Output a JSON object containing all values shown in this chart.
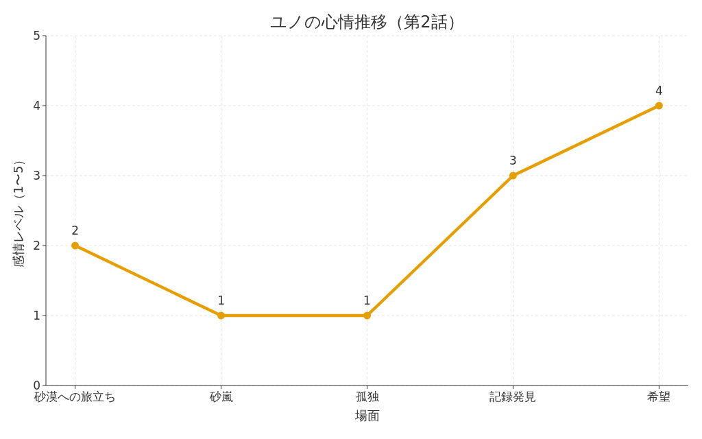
{
  "chart_data": {
    "type": "line",
    "title": "ユノの心情推移（第2話）",
    "xlabel": "場面",
    "ylabel": "感情レベル（1〜5）",
    "categories": [
      "砂漠への旅立ち",
      "砂嵐",
      "孤独",
      "記録発見",
      "希望"
    ],
    "series": [
      {
        "color": "#e69f00",
        "values": [
          2,
          1,
          1,
          3,
          4
        ]
      }
    ],
    "ylim": [
      0,
      5
    ],
    "yticks": [
      0,
      1,
      2,
      3,
      4,
      5
    ],
    "grid": true,
    "marker": "circle",
    "line_style": "solid",
    "data_labels": true
  }
}
